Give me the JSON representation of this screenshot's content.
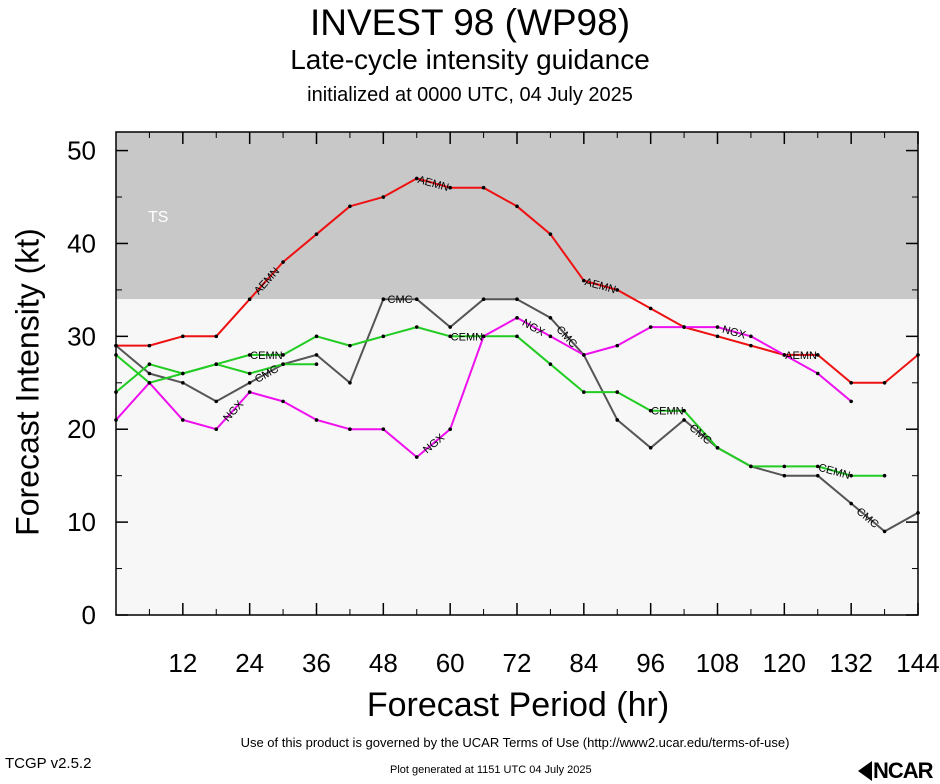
{
  "header": {
    "title": "INVEST 98 (WP98)",
    "subtitle": "Late-cycle intensity guidance",
    "initialized": "initialized at 0000 UTC, 04 July 2025"
  },
  "footer": {
    "terms": "Use of this product is governed by the UCAR Terms of Use (http://www2.ucar.edu/terms-of-use)",
    "version": "TCGP v2.5.2",
    "generated": "Plot generated at 1151 UTC   04 July 2025",
    "logo": "NCAR"
  },
  "chart_data": {
    "type": "line",
    "title": "INVEST 98 (WP98)",
    "xlabel": "Forecast Period (hr)",
    "ylabel": "Forecast Intensity (kt)",
    "xlim": [
      0,
      144
    ],
    "ylim": [
      0,
      52
    ],
    "x_ticks": [
      12,
      24,
      36,
      48,
      60,
      72,
      84,
      96,
      108,
      120,
      132,
      144
    ],
    "y_ticks": [
      0,
      10,
      20,
      30,
      40,
      50
    ],
    "bands": [
      {
        "label": "TS",
        "from": 34,
        "to": 52,
        "color": "#c8c8c8"
      },
      {
        "label": "",
        "from": 0,
        "to": 34,
        "color": "#f7f7f7"
      }
    ],
    "series": [
      {
        "name": "AEMN",
        "color": "#ee1111",
        "x": [
          0,
          6,
          12,
          18,
          24,
          30,
          36,
          42,
          48,
          54,
          60,
          66,
          72,
          78,
          84,
          90,
          96,
          102,
          108,
          114,
          120,
          126,
          132,
          138,
          144
        ],
        "y": [
          29,
          29,
          30,
          30,
          34,
          38,
          41,
          44,
          45,
          47,
          46,
          46,
          44,
          41,
          36,
          35,
          33,
          31,
          30,
          29,
          28,
          28,
          25,
          25,
          28
        ],
        "label_at": [
          24,
          54,
          84,
          120
        ]
      },
      {
        "name": "CMC",
        "color": "#555555",
        "x": [
          0,
          6,
          12,
          18,
          24,
          30,
          36,
          42,
          48,
          54,
          60,
          66,
          72,
          78,
          84,
          90,
          96,
          102,
          108,
          114,
          120,
          126,
          132,
          138,
          144
        ],
        "y": [
          29,
          26,
          25,
          23,
          25,
          27,
          28,
          25,
          34,
          34,
          31,
          34,
          34,
          32,
          28,
          21,
          18,
          21,
          18,
          16,
          15,
          15,
          12,
          9,
          11
        ],
        "label_at": [
          24,
          48,
          78,
          102,
          132
        ]
      },
      {
        "name": "CEMN",
        "color": "#22cc22",
        "x": [
          0,
          6,
          12,
          18,
          24,
          30,
          36,
          42,
          48,
          54,
          60,
          66,
          72,
          78,
          84,
          90,
          96,
          102,
          108,
          114,
          120,
          126,
          132,
          138
        ],
        "y": [
          24,
          27,
          26,
          27,
          28,
          28,
          30,
          29,
          30,
          31,
          30,
          30,
          30,
          27,
          24,
          24,
          22,
          22,
          18,
          16,
          16,
          16,
          15,
          15
        ],
        "label_at": [
          24,
          60,
          96,
          126
        ]
      },
      {
        "name": "NGX",
        "color": "#ee11ee",
        "x": [
          0,
          6,
          12,
          18,
          24,
          30,
          36,
          42,
          48,
          54,
          60,
          66,
          72,
          78,
          84,
          90,
          96,
          102,
          108,
          114,
          120,
          126,
          132
        ],
        "y": [
          21,
          25,
          21,
          20,
          24,
          23,
          21,
          20,
          20,
          17,
          20,
          30,
          32,
          30,
          28,
          29,
          31,
          31,
          31,
          30,
          28,
          26,
          23
        ],
        "label_at": [
          18,
          54,
          72,
          108
        ]
      },
      {
        "name": "",
        "color": "#22cc22",
        "x": [
          0,
          6,
          12,
          18,
          24,
          30,
          36
        ],
        "y": [
          28,
          25,
          26,
          27,
          26,
          27,
          27
        ],
        "label_at": []
      }
    ]
  }
}
